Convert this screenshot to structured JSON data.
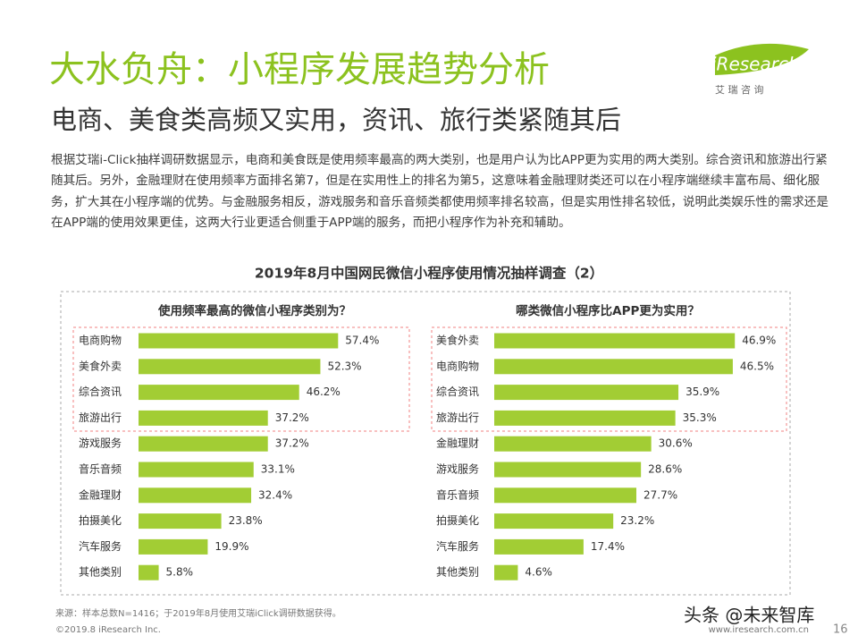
{
  "title": "大水负舟：小程序发展趋势分析",
  "subtitle": "电商、美食类高频又实用，资讯、旅行类紧随其后",
  "logo": {
    "brand": "iResearch",
    "cn": "艾 瑞 咨 询"
  },
  "body": "根据艾瑞i-Click抽样调研数据显示，电商和美食既是使用频率最高的两大类别，也是用户认为比APP更为实用的两大类别。综合资讯和旅游出行紧随其后。另外，金融理财在使用频率方面排名第7，但是在实用性上的排名为第5，这意味着金融理财类还可以在小程序端继续丰富布局、细化服务，扩大其在小程序端的优势。与金融服务相反，游戏服务和音乐音频类都使用频率排名较高，但是实用性排名较低，说明此类娱乐性的需求还是在APP端的使用效果更佳，这两大行业更适合侧重于APP端的服务，而把小程序作为补充和辅助。",
  "figure_title": "2019年8月中国网民微信小程序使用情况抽样调查（2）",
  "chart_data": [
    {
      "type": "bar",
      "title": "使用频率最高的微信小程序类别为？",
      "color": "#a2cd34",
      "categories": [
        "电商购物",
        "美食外卖",
        "综合资讯",
        "旅游出行",
        "游戏服务",
        "音乐音频",
        "金融理财",
        "拍摄美化",
        "汽车服务",
        "其他类别"
      ],
      "values": [
        57.4,
        52.3,
        46.2,
        37.2,
        37.2,
        33.1,
        32.4,
        23.8,
        19.9,
        5.8
      ],
      "value_labels": [
        "57.4%",
        "52.3%",
        "46.2%",
        "37.2%",
        "37.2%",
        "33.1%",
        "32.4%",
        "23.8%",
        "19.9%",
        "5.8%"
      ]
    },
    {
      "type": "bar",
      "title": "哪类微信小程序比APP更为实用？",
      "color": "#a2cd34",
      "categories": [
        "美食外卖",
        "电商购物",
        "综合资讯",
        "旅游出行",
        "金融理财",
        "游戏服务",
        "音乐音频",
        "拍摄美化",
        "汽车服务",
        "其他类别"
      ],
      "values": [
        46.9,
        46.5,
        35.9,
        35.3,
        30.6,
        28.6,
        27.7,
        23.2,
        17.4,
        4.6
      ],
      "value_labels": [
        "46.9%",
        "46.5%",
        "35.9%",
        "35.3%",
        "30.6%",
        "28.6%",
        "27.7%",
        "23.2%",
        "17.4%",
        "4.6%"
      ]
    }
  ],
  "source": "来源：样本总数N=1416；于2019年8月使用艾瑞iClick调研数据获得。",
  "copyright": "©2019.8 iResearch Inc.",
  "website": "www.iresearch.com.cn",
  "page": "16",
  "watermark": "头条 @未来智库"
}
